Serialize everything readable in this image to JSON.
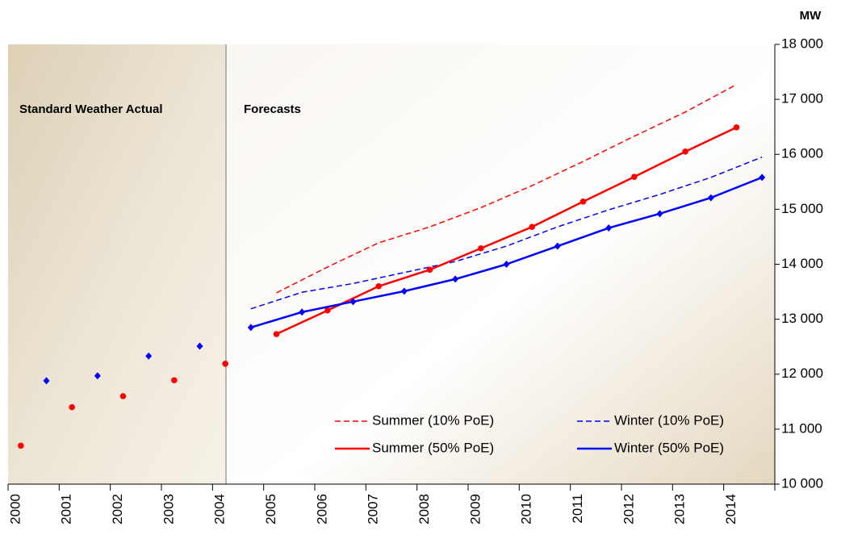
{
  "chart_data": {
    "type": "line",
    "unit_label": "MW",
    "annotations": [
      "Standard Weather Actual",
      "Forecasts"
    ],
    "categories": [
      "2000",
      null,
      "2001",
      null,
      "2002",
      null,
      "2003",
      null,
      "2004",
      null,
      "2005",
      null,
      "2006",
      null,
      "2007",
      null,
      "2008",
      null,
      "2009",
      null,
      "2010",
      null,
      "2011",
      null,
      "2012",
      null,
      "2013",
      null,
      "2014",
      null
    ],
    "ylim": [
      10000,
      18000
    ],
    "yticks": [
      {
        "value": 10000,
        "label": "10 000"
      },
      {
        "value": 11000,
        "label": "11 000"
      },
      {
        "value": 12000,
        "label": "12 000"
      },
      {
        "value": 13000,
        "label": "13 000"
      },
      {
        "value": 14000,
        "label": "14 000"
      },
      {
        "value": 15000,
        "label": "15 000"
      },
      {
        "value": 16000,
        "label": "16 000"
      },
      {
        "value": 17000,
        "label": "17 000"
      },
      {
        "value": 18000,
        "label": "18 000"
      }
    ],
    "series": [
      {
        "name": "Summer (10% PoE)",
        "color": "#ff0000",
        "dashed": true,
        "values": [
          null,
          null,
          null,
          null,
          null,
          null,
          null,
          null,
          null,
          null,
          13480,
          null,
          13950,
          null,
          14390,
          null,
          14680,
          null,
          15030,
          null,
          15430,
          null,
          15870,
          null,
          16330,
          null,
          16770,
          null,
          17270,
          null
        ]
      },
      {
        "name": "Winter (10% PoE)",
        "color": "#0000ff",
        "dashed": true,
        "values": [
          null,
          null,
          null,
          null,
          null,
          null,
          null,
          null,
          null,
          13190,
          null,
          13490,
          null,
          13650,
          null,
          13850,
          null,
          14050,
          null,
          14330,
          null,
          14680,
          null,
          14990,
          null,
          15270,
          null,
          15580,
          null,
          15950
        ]
      },
      {
        "name": "Summer (50% PoE)",
        "color": "#ff0000",
        "marker": "circle",
        "values": [
          null,
          null,
          null,
          null,
          null,
          null,
          null,
          null,
          null,
          null,
          12730,
          null,
          13160,
          null,
          13600,
          null,
          13900,
          null,
          14290,
          null,
          14680,
          null,
          15140,
          null,
          15590,
          null,
          16050,
          null,
          16490,
          null
        ]
      },
      {
        "name": "Winter (50% PoE)",
        "color": "#0000ff",
        "marker": "diamond",
        "values": [
          null,
          null,
          null,
          null,
          null,
          null,
          null,
          null,
          null,
          12850,
          null,
          13130,
          null,
          13320,
          null,
          13510,
          null,
          13730,
          null,
          14000,
          null,
          14330,
          null,
          14660,
          null,
          14920,
          null,
          15210,
          null,
          15580
        ]
      },
      {
        "color": "#ff0000",
        "marker": "circle",
        "line": false,
        "values": [
          10700,
          null,
          11400,
          null,
          11600,
          null,
          11890,
          null,
          12190,
          null,
          null,
          null,
          null,
          null,
          null,
          null,
          null,
          null,
          null,
          null,
          null,
          null,
          null,
          null,
          null,
          null,
          null,
          null,
          null,
          null
        ]
      },
      {
        "color": "#0000ff",
        "marker": "diamond",
        "line": false,
        "values": [
          null,
          11880,
          null,
          11970,
          null,
          12330,
          null,
          12510,
          null,
          null,
          null,
          null,
          null,
          null,
          null,
          null,
          null,
          null,
          null,
          null,
          null,
          null,
          null,
          null,
          null,
          null,
          null,
          null,
          null,
          null
        ]
      }
    ]
  }
}
